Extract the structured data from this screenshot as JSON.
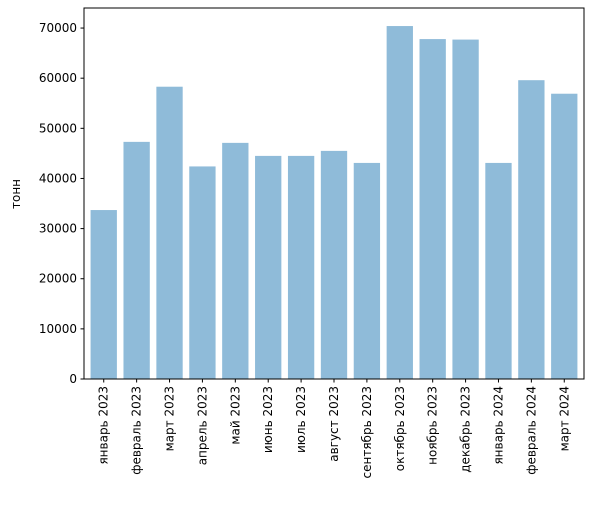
{
  "chart_data": {
    "type": "bar",
    "title": "",
    "xlabel": "",
    "ylabel": "тонн",
    "ylim": [
      0,
      74000
    ],
    "yticks": [
      0,
      10000,
      20000,
      30000,
      40000,
      50000,
      60000,
      70000
    ],
    "grid": false,
    "legend": "none",
    "bar_color": "#8fbbd9",
    "categories": [
      "январь 2023",
      "февраль 2023",
      "март 2023",
      "апрель 2023",
      "май 2023",
      "июнь 2023",
      "июль 2023",
      "август 2023",
      "сентябрь 2023",
      "октябрь 2023",
      "ноябрь 2023",
      "декабрь 2023",
      "январь 2024",
      "февраль 2024",
      "март 2024"
    ],
    "values": [
      33700,
      47300,
      58300,
      42400,
      47100,
      44500,
      44500,
      45500,
      43100,
      70400,
      67800,
      67700,
      43100,
      59600,
      56900
    ]
  }
}
